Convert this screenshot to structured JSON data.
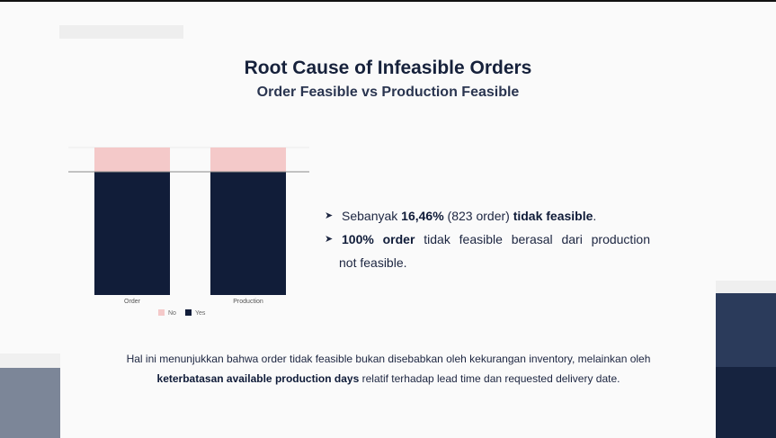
{
  "slide": {
    "title": "Root Cause of Infeasible Orders",
    "subtitle": "Order Feasible vs Production Feasible"
  },
  "chart_data": {
    "type": "bar",
    "stacked": true,
    "categories": [
      "Order",
      "Production"
    ],
    "series": [
      {
        "name": "No",
        "color": "#f4c9c9",
        "values": [
          16.46,
          16.46
        ]
      },
      {
        "name": "Yes",
        "color": "#111d39",
        "values": [
          83.54,
          83.54
        ]
      }
    ],
    "ylim": [
      0,
      100
    ],
    "legend": "bottom",
    "grid": false
  },
  "bullets": {
    "marker": "➤",
    "item1": {
      "prefix": "Sebanyak ",
      "bold1": "16,46%",
      "mid": " (823 order) ",
      "bold2": "tidak feasible",
      "suffix": "."
    },
    "item2": {
      "bold": "100% order",
      "text": " tidak feasible berasal dari production",
      "continuation": "not feasible."
    }
  },
  "footer": {
    "line1": "Hal ini menunjukkan bahwa order tidak feasible bukan disebabkan oleh kekurangan inventory, melainkan oleh",
    "bold": "keterbatasan available production days",
    "line2_rest": " relatif terhadap lead time dan requested delivery date."
  },
  "colors": {
    "navy": "#111d39",
    "pink": "#f4c9c9"
  }
}
